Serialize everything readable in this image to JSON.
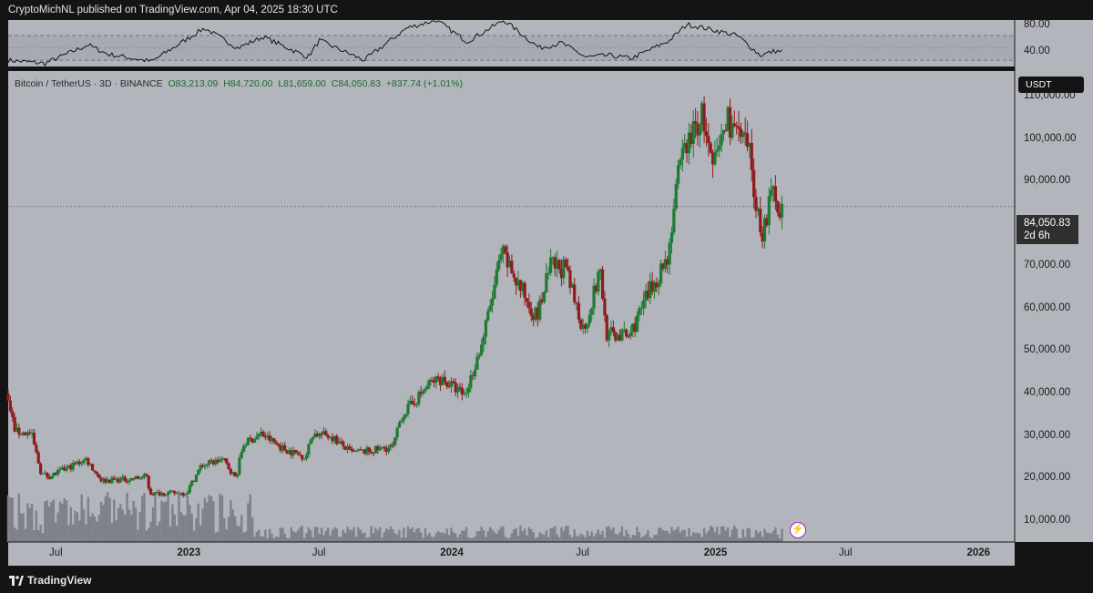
{
  "header": {
    "published": "CryptoMichNL published on TradingView.com, Apr 04, 2025 18:30 UTC"
  },
  "legend": {
    "symbol": "Bitcoin / TetherUS · 3D · BINANCE",
    "open": "O83,213.09",
    "high": "H84,720.00",
    "low": "L81,659.00",
    "close": "C84,050.83",
    "change": "+837.74 (+1.01%)"
  },
  "currency": "USDT",
  "last_price": {
    "value": "84,050.83",
    "countdown": "2d 6h"
  },
  "rsi_axis_labels": [
    "80.00",
    "40.00"
  ],
  "footer": {
    "brand": "TradingView"
  },
  "colors": {
    "up": "#1f7a32",
    "down": "#8e1c1c",
    "panel": "#b3b5bd",
    "background": "#141414",
    "volume": "#7f8188"
  },
  "chart_data": {
    "type": "candlestick",
    "symbol": "BTCUSDT",
    "exchange": "BINANCE",
    "timeframe": "3D",
    "x_ticks": [
      {
        "label": "Jul",
        "date": "2022-07-01",
        "major": false
      },
      {
        "label": "2023",
        "date": "2023-01-01",
        "major": true
      },
      {
        "label": "Jul",
        "date": "2023-07-01",
        "major": false
      },
      {
        "label": "2024",
        "date": "2024-01-01",
        "major": true
      },
      {
        "label": "Jul",
        "date": "2024-07-01",
        "major": false
      },
      {
        "label": "2025",
        "date": "2025-01-01",
        "major": true
      },
      {
        "label": "Jul",
        "date": "2025-07-01",
        "major": false
      },
      {
        "label": "2026",
        "date": "2026-01-01",
        "major": true
      }
    ],
    "y_ticks": [
      10000,
      20000,
      30000,
      40000,
      50000,
      60000,
      70000,
      80000,
      90000,
      100000,
      110000
    ],
    "y_tick_labels": [
      "10,000.00",
      "20,000.00",
      "30,000.00",
      "40,000.00",
      "50,000.00",
      "60,000.00",
      "70,000.00",
      "",
      "90,000.00",
      "100,000.00",
      "110,000.00"
    ],
    "ylim": [
      5000,
      116000
    ],
    "xlim": [
      "2022-04-25",
      "2026-02-20"
    ],
    "price_path": [
      [
        "2022-04-25",
        40000
      ],
      [
        "2022-05-08",
        31000
      ],
      [
        "2022-05-30",
        30500
      ],
      [
        "2022-06-13",
        21000
      ],
      [
        "2022-06-25",
        20500
      ],
      [
        "2022-08-14",
        24500
      ],
      [
        "2022-09-05",
        19500
      ],
      [
        "2022-10-15",
        19800
      ],
      [
        "2022-11-07",
        20500
      ],
      [
        "2022-11-10",
        16500
      ],
      [
        "2022-12-31",
        16500
      ],
      [
        "2023-01-21",
        23000
      ],
      [
        "2023-02-20",
        24500
      ],
      [
        "2023-03-10",
        20000
      ],
      [
        "2023-03-20",
        28000
      ],
      [
        "2023-04-14",
        30500
      ],
      [
        "2023-05-15",
        27000
      ],
      [
        "2023-06-15",
        25000
      ],
      [
        "2023-06-24",
        30500
      ],
      [
        "2023-07-20",
        30000
      ],
      [
        "2023-08-17",
        26000
      ],
      [
        "2023-09-15",
        26500
      ],
      [
        "2023-10-15",
        27500
      ],
      [
        "2023-10-25",
        34500
      ],
      [
        "2023-12-05",
        42500
      ],
      [
        "2023-12-20",
        43500
      ],
      [
        "2024-01-22",
        39500
      ],
      [
        "2024-02-15",
        52000
      ],
      [
        "2024-03-13",
        73000
      ],
      [
        "2024-04-17",
        62000
      ],
      [
        "2024-05-01",
        58000
      ],
      [
        "2024-05-20",
        70000
      ],
      [
        "2024-06-08",
        69500
      ],
      [
        "2024-07-05",
        55000
      ],
      [
        "2024-07-28",
        69000
      ],
      [
        "2024-08-05",
        54000
      ],
      [
        "2024-09-06",
        53500
      ],
      [
        "2024-10-01",
        63000
      ],
      [
        "2024-10-29",
        72000
      ],
      [
        "2024-11-12",
        90000
      ],
      [
        "2024-11-22",
        98000
      ],
      [
        "2024-12-05",
        102000
      ],
      [
        "2024-12-17",
        106000
      ],
      [
        "2024-12-30",
        92000
      ],
      [
        "2025-01-20",
        105000
      ],
      [
        "2025-01-31",
        102000
      ],
      [
        "2025-02-21",
        96000
      ],
      [
        "2025-03-01",
        84000
      ],
      [
        "2025-03-10",
        78000
      ],
      [
        "2025-03-24",
        87500
      ],
      [
        "2025-04-04",
        84050.83
      ]
    ],
    "last_close": 84050.83,
    "rsi": {
      "name": "RSI",
      "ylim": [
        20,
        95
      ],
      "levels": [
        70,
        30
      ],
      "path": [
        [
          "2022-04-25",
          30
        ],
        [
          "2022-06-15",
          25
        ],
        [
          "2022-08-14",
          55
        ],
        [
          "2022-09-10",
          40
        ],
        [
          "2022-11-10",
          28
        ],
        [
          "2023-01-22",
          82
        ],
        [
          "2023-03-10",
          50
        ],
        [
          "2023-04-14",
          68
        ],
        [
          "2023-06-15",
          35
        ],
        [
          "2023-07-01",
          62
        ],
        [
          "2023-09-01",
          30
        ],
        [
          "2023-10-30",
          82
        ],
        [
          "2023-12-10",
          95
        ],
        [
          "2024-01-22",
          60
        ],
        [
          "2024-03-13",
          95
        ],
        [
          "2024-05-01",
          50
        ],
        [
          "2024-06-01",
          58
        ],
        [
          "2024-07-05",
          35
        ],
        [
          "2024-08-05",
          38
        ],
        [
          "2024-09-06",
          33
        ],
        [
          "2024-10-29",
          62
        ],
        [
          "2024-11-22",
          88
        ],
        [
          "2024-12-17",
          82
        ],
        [
          "2025-01-31",
          70
        ],
        [
          "2025-03-04",
          38
        ],
        [
          "2025-03-24",
          45
        ],
        [
          "2025-04-04",
          44
        ]
      ]
    }
  }
}
